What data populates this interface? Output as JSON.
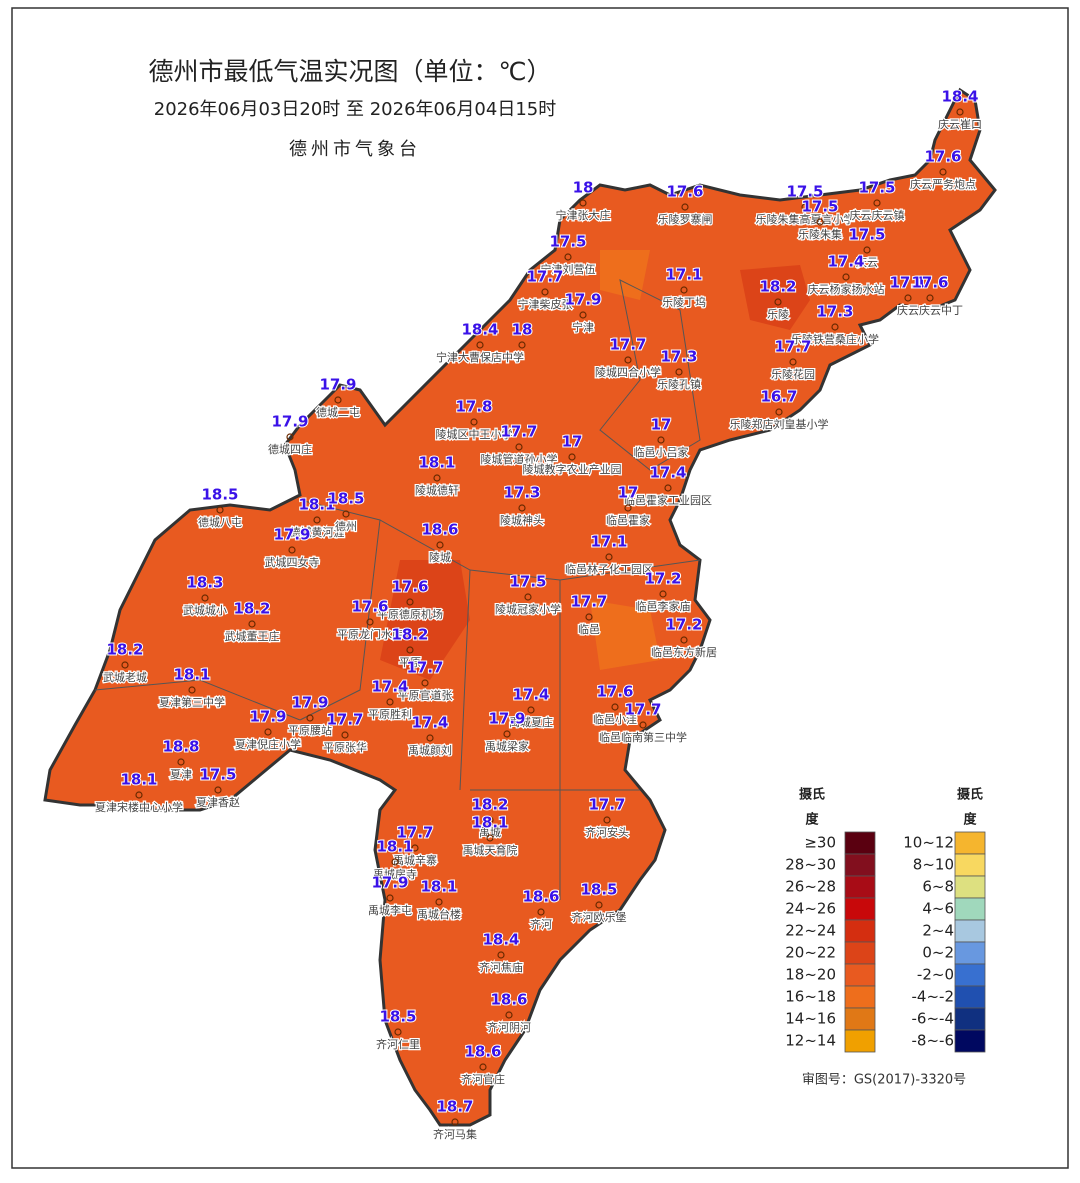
{
  "header": {
    "title": "德州市最低气温实况图（单位：℃）",
    "time_range": "2026年06月03日20时  至  2026年06月04日15时",
    "agency": "德州市气象台"
  },
  "stations": [
    {
      "name": "庆云崔口",
      "value": 18.4
    },
    {
      "name": "庆云严务炮点",
      "value": 17.6
    },
    {
      "name": "宁津张大庄",
      "value": 18
    },
    {
      "name": "乐陵罗寨闸",
      "value": 17.6
    },
    {
      "name": "乐陵朱集高夏言小学",
      "value": 17.5
    },
    {
      "name": "乐陵朱集",
      "value": 17.5
    },
    {
      "name": "庆云庆云镇",
      "value": 17.5
    },
    {
      "name": "宁津刘营伍",
      "value": 17.5
    },
    {
      "name": "庆云",
      "value": 17.5
    },
    {
      "name": "乐陵丁坞",
      "value": 17.1
    },
    {
      "name": "宁津柴皮张",
      "value": 17.7
    },
    {
      "name": "宁津",
      "value": 17.9
    },
    {
      "name": "乐陵",
      "value": 18.2
    },
    {
      "name": "庆云杨家扬水站",
      "value": 17.4
    },
    {
      "value": 17.1
    },
    {
      "name": "庆云庆云中丁",
      "value": 17.6
    },
    {
      "name": "乐陵铁营桑庄小学",
      "value": 17.3
    },
    {
      "name": "宁津大曹保店中学",
      "value": 18.4
    },
    {
      "value": 18
    },
    {
      "name": "陵城四合小学",
      "value": 17.7
    },
    {
      "name": "乐陵孔镇",
      "value": 17.3
    },
    {
      "name": "乐陵花园",
      "value": 17.7
    },
    {
      "name": "德城二屯",
      "value": 17.9
    },
    {
      "name": "乐陵郑店刘皇基小学",
      "value": 16.7
    },
    {
      "name": "陵城区中王小学",
      "value": 17.8
    },
    {
      "name": "德城四庄",
      "value": 17.9
    },
    {
      "name": "陵城管道孙小学",
      "value": 17.7
    },
    {
      "name": "陵城教字农业产业园",
      "value": 17
    },
    {
      "name": "临邑小吕家",
      "value": 17
    },
    {
      "name": "陵城德轩",
      "value": 18.1
    },
    {
      "name": "临邑霍家工业园区",
      "value": 17.4
    },
    {
      "name": "德城八屯",
      "value": 18.5
    },
    {
      "name": "陵城神头",
      "value": 17.3
    },
    {
      "name": "临邑霍家",
      "value": 17
    },
    {
      "name": "德城黄河涯",
      "value": 18.1
    },
    {
      "name": "德州",
      "value": 18.5
    },
    {
      "name": "武城四女寺",
      "value": 17.9
    },
    {
      "name": "陵城",
      "value": 18.6
    },
    {
      "name": "临邑林子化工园区",
      "value": 17.1
    },
    {
      "name": "武城城小",
      "value": 18.3
    },
    {
      "name": "平原德原机场",
      "value": 17.6
    },
    {
      "name": "临邑李家庙",
      "value": 17.2
    },
    {
      "name": "陵城冠家小学",
      "value": 17.5
    },
    {
      "name": "武城董王庄",
      "value": 18.2
    },
    {
      "name": "平原龙门水库",
      "value": 17.6
    },
    {
      "name": "临邑",
      "value": 17.7
    },
    {
      "name": "临邑东方新居",
      "value": 17.2
    },
    {
      "name": "平原",
      "value": 18.2
    },
    {
      "name": "武城老城",
      "value": 18.2
    },
    {
      "name": "平原官道张",
      "value": 17.7
    },
    {
      "name": "夏津第三中学",
      "value": 18.1
    },
    {
      "name": "平原胜利",
      "value": 17.4
    },
    {
      "name": "临邑小洼",
      "value": 17.6
    },
    {
      "name": "禹城夏庄",
      "value": 17.4
    },
    {
      "name": "临邑临南第三中学",
      "value": 17.7
    },
    {
      "name": "平原腰站",
      "value": 17.9
    },
    {
      "name": "夏津倪庄小学",
      "value": 17.9
    },
    {
      "name": "平原张华",
      "value": 17.7
    },
    {
      "name": "禹城颜刘",
      "value": 17.4
    },
    {
      "name": "禹城梁家",
      "value": 17.9
    },
    {
      "name": "夏津",
      "value": 18.8
    },
    {
      "name": "夏津宋楼中心小学",
      "value": 18.1
    },
    {
      "name": "夏津香赵",
      "value": 17.5
    },
    {
      "name": "齐河安头",
      "value": 17.7
    },
    {
      "name": "禹城",
      "value": 18.2
    },
    {
      "name": "禹城天育院",
      "value": 18.1
    },
    {
      "name": "禹城辛寨",
      "value": 17.7
    },
    {
      "name": "禹城房寺",
      "value": 18.1
    },
    {
      "name": "禹城李屯",
      "value": 17.9
    },
    {
      "name": "禹城台楼",
      "value": 18.1
    },
    {
      "name": "齐河",
      "value": 18.6
    },
    {
      "name": "齐河欧乐堡",
      "value": 18.5
    },
    {
      "name": "齐河焦庙",
      "value": 18.4
    },
    {
      "name": "齐河阴河",
      "value": 18.6
    },
    {
      "name": "齐河仁里",
      "value": 18.5
    },
    {
      "name": "齐河官庄",
      "value": 18.6
    },
    {
      "name": "齐河马集",
      "value": 18.7
    }
  ],
  "legend": {
    "heading": [
      "摄氏",
      "度"
    ],
    "left": [
      {
        "label": "≥30",
        "color": "#5a0010"
      },
      {
        "label": "28~30",
        "color": "#820f1e"
      },
      {
        "label": "26~28",
        "color": "#a80c16"
      },
      {
        "label": "24~26",
        "color": "#c8080a"
      },
      {
        "label": "22~24",
        "color": "#d42e10"
      },
      {
        "label": "20~22",
        "color": "#dc4418"
      },
      {
        "label": "18~20",
        "color": "#e85a20"
      },
      {
        "label": "16~18",
        "color": "#ee6e1c"
      },
      {
        "label": "14~16",
        "color": "#e07816"
      },
      {
        "label": "12~14",
        "color": "#f0a000"
      }
    ],
    "right": [
      {
        "label": "10~12",
        "color": "#f5b52e"
      },
      {
        "label": "8~10",
        "color": "#f8d860"
      },
      {
        "label": "6~8",
        "color": "#dde080"
      },
      {
        "label": "4~6",
        "color": "#a0d8bc"
      },
      {
        "label": "2~4",
        "color": "#a8c8e0"
      },
      {
        "label": "0~2",
        "color": "#6898e0"
      },
      {
        "label": "-2~0",
        "color": "#3870d0"
      },
      {
        "label": "-4~-2",
        "color": "#2050b0"
      },
      {
        "label": "-6~-4",
        "color": "#103080"
      },
      {
        "label": "-8~-6",
        "color": "#000860"
      }
    ]
  },
  "footer": "审图号：GS(2017)-3320号"
}
